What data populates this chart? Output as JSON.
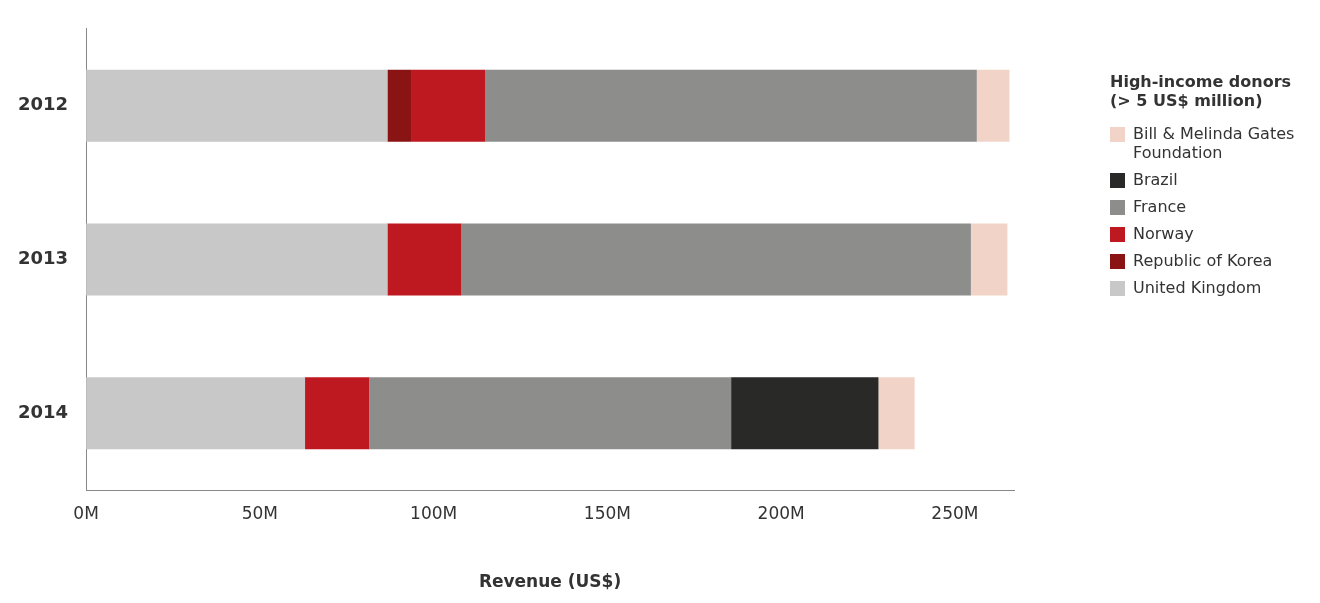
{
  "chart_data": {
    "type": "bar",
    "orientation": "horizontal",
    "stacked": true,
    "categories": [
      "2012",
      "2013",
      "2014"
    ],
    "series": [
      {
        "name": "United Kingdom",
        "color": "#c8c8c8",
        "values": [
          86.7,
          86.7,
          63
        ]
      },
      {
        "name": "Republic of Korea",
        "color": "#8a1414",
        "values": [
          6.8,
          null,
          null
        ]
      },
      {
        "name": "Norway",
        "color": "#be1820",
        "values": [
          21.4,
          21.3,
          18.5
        ]
      },
      {
        "name": "France",
        "color": "#8d8d8b",
        "values": [
          141.4,
          146.6,
          104.1
        ]
      },
      {
        "name": "Brazil",
        "color": "#292928",
        "values": [
          null,
          null,
          42.4
        ]
      },
      {
        "name": "Bill & Melinda Gates Foundation",
        "color": "#f2d3c8",
        "values": [
          9.4,
          10.5,
          10.4
        ]
      }
    ],
    "xlim": [
      0,
      267
    ],
    "xticks": [
      {
        "value": 0,
        "label": "0M"
      },
      {
        "value": 50,
        "label": "50M"
      },
      {
        "value": 100,
        "label": "100M"
      },
      {
        "value": 150,
        "label": "150M"
      },
      {
        "value": 200,
        "label": "200M"
      },
      {
        "value": 250,
        "label": "250M"
      }
    ],
    "xlabel": "Revenue (US$)",
    "legend": "right",
    "legend_title": "High-income donors\n(> 5 US$ million)"
  }
}
